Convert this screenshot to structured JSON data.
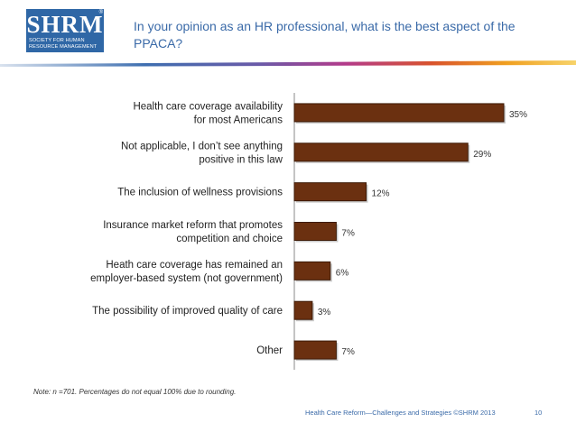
{
  "logo": {
    "main": "SHRM",
    "reg": "®",
    "sub_line1": "SOCIETY FOR HUMAN",
    "sub_line2": "RESOURCE MANAGEMENT"
  },
  "slide": {
    "title": "In your opinion as an HR professional, what is the best aspect of the PPACA?",
    "note": "Note: n =701. Percentages do not equal 100% due to rounding.",
    "footer": "Health Care Reform—Challenges and Strategies ©SHRM 2013",
    "page_number": "10"
  },
  "colors": {
    "bar_fill": "#6b3010",
    "bar_stroke": "#3d1a06",
    "title": "#3a6aa8",
    "axis": "#888888"
  },
  "chart_data": {
    "type": "bar",
    "orientation": "horizontal",
    "title": "",
    "xlabel": "",
    "ylabel": "",
    "xlim": [
      0,
      35
    ],
    "grid": false,
    "value_suffix": "%",
    "categories": [
      [
        "Health care coverage availability",
        "for most Americans"
      ],
      [
        "Not applicable, I don’t see anything",
        "positive in this law"
      ],
      [
        "The inclusion of wellness provisions"
      ],
      [
        "Insurance market reform that promotes",
        "competition and choice"
      ],
      [
        "Heath care coverage has remained an",
        "employer-based system (not government)"
      ],
      [
        "The possibility of improved quality of care"
      ],
      [
        "Other"
      ]
    ],
    "values": [
      35,
      29,
      12,
      7,
      6,
      3,
      7
    ]
  }
}
